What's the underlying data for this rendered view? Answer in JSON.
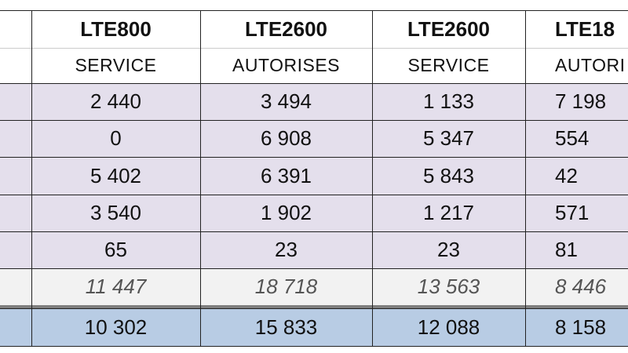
{
  "columns": [
    {
      "name": "LTE800",
      "sub": "SERVICE"
    },
    {
      "name": "LTE2600",
      "sub": "AUTORISES"
    },
    {
      "name": "LTE2600",
      "sub": "SERVICE"
    },
    {
      "name": "LTE18",
      "sub": "AUTORI"
    }
  ],
  "rows": [
    [
      "2 440",
      "3 494",
      "1 133",
      "7 198"
    ],
    [
      "0",
      "6 908",
      "5 347",
      "554"
    ],
    [
      "5 402",
      "6 391",
      "5 843",
      "42"
    ],
    [
      "3 540",
      "1 902",
      "1 217",
      "571"
    ],
    [
      "65",
      "23",
      "23",
      "81"
    ]
  ],
  "total_row": [
    "11 447",
    "18 718",
    "13 563",
    "8 446"
  ],
  "summary_row": [
    "10 302",
    "15 833",
    "12 088",
    "8 158"
  ],
  "colors": {
    "data_row_bg": "#e4dfec",
    "total_row_bg": "#f2f2f2",
    "summary_row_bg": "#b8cce4",
    "grid_line": "#222222",
    "separator": "#7f7f7f"
  }
}
